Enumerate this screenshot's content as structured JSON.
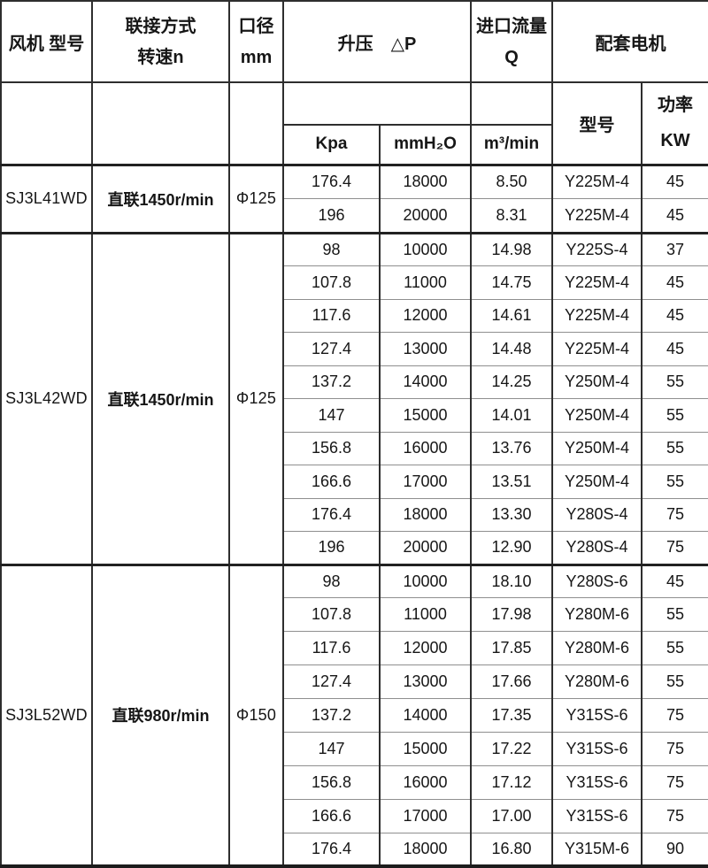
{
  "table": {
    "header": {
      "fan_model": "风机 型号",
      "connection_line1": "联接方式",
      "connection_line2": "转速n",
      "diameter_line1": "口径",
      "diameter_line2": "mm",
      "pressure": "升压　△P",
      "flow_line1": "进口流量",
      "flow_line2": "Q",
      "motor": "配套电机",
      "sub_kpa": "Kpa",
      "sub_mmh2o": "mmH₂O",
      "sub_m3min": "m³/min",
      "sub_motor_model": "型号",
      "power_line1": "功率",
      "power_line2": "KW"
    },
    "column_keys": [
      "kpa",
      "mmh2o",
      "flow",
      "motor",
      "power"
    ],
    "groups": [
      {
        "model": "SJ3L41WD",
        "connection": "直联1450r/min",
        "diameter": "Φ125",
        "rows": [
          [
            "176.4",
            "18000",
            "8.50",
            "Y225M-4",
            "45"
          ],
          [
            "196",
            "20000",
            "8.31",
            "Y225M-4",
            "45"
          ]
        ]
      },
      {
        "model": "SJ3L42WD",
        "connection": "直联1450r/min",
        "diameter": "Φ125",
        "rows": [
          [
            "98",
            "10000",
            "14.98",
            "Y225S-4",
            "37"
          ],
          [
            "107.8",
            "11000",
            "14.75",
            "Y225M-4",
            "45"
          ],
          [
            "117.6",
            "12000",
            "14.61",
            "Y225M-4",
            "45"
          ],
          [
            "127.4",
            "13000",
            "14.48",
            "Y225M-4",
            "45"
          ],
          [
            "137.2",
            "14000",
            "14.25",
            "Y250M-4",
            "55"
          ],
          [
            "147",
            "15000",
            "14.01",
            "Y250M-4",
            "55"
          ],
          [
            "156.8",
            "16000",
            "13.76",
            "Y250M-4",
            "55"
          ],
          [
            "166.6",
            "17000",
            "13.51",
            "Y250M-4",
            "55"
          ],
          [
            "176.4",
            "18000",
            "13.30",
            "Y280S-4",
            "75"
          ],
          [
            "196",
            "20000",
            "12.90",
            "Y280S-4",
            "75"
          ]
        ]
      },
      {
        "model": "SJ3L52WD",
        "connection": "直联980r/min",
        "diameter": "Φ150",
        "rows": [
          [
            "98",
            "10000",
            "18.10",
            "Y280S-6",
            "45"
          ],
          [
            "107.8",
            "11000",
            "17.98",
            "Y280M-6",
            "55"
          ],
          [
            "117.6",
            "12000",
            "17.85",
            "Y280M-6",
            "55"
          ],
          [
            "127.4",
            "13000",
            "17.66",
            "Y280M-6",
            "55"
          ],
          [
            "137.2",
            "14000",
            "17.35",
            "Y315S-6",
            "75"
          ],
          [
            "147",
            "15000",
            "17.22",
            "Y315S-6",
            "75"
          ],
          [
            "156.8",
            "16000",
            "17.12",
            "Y315S-6",
            "75"
          ],
          [
            "166.6",
            "17000",
            "17.00",
            "Y315S-6",
            "75"
          ],
          [
            "176.4",
            "18000",
            "16.80",
            "Y315M-6",
            "90"
          ]
        ]
      }
    ]
  }
}
